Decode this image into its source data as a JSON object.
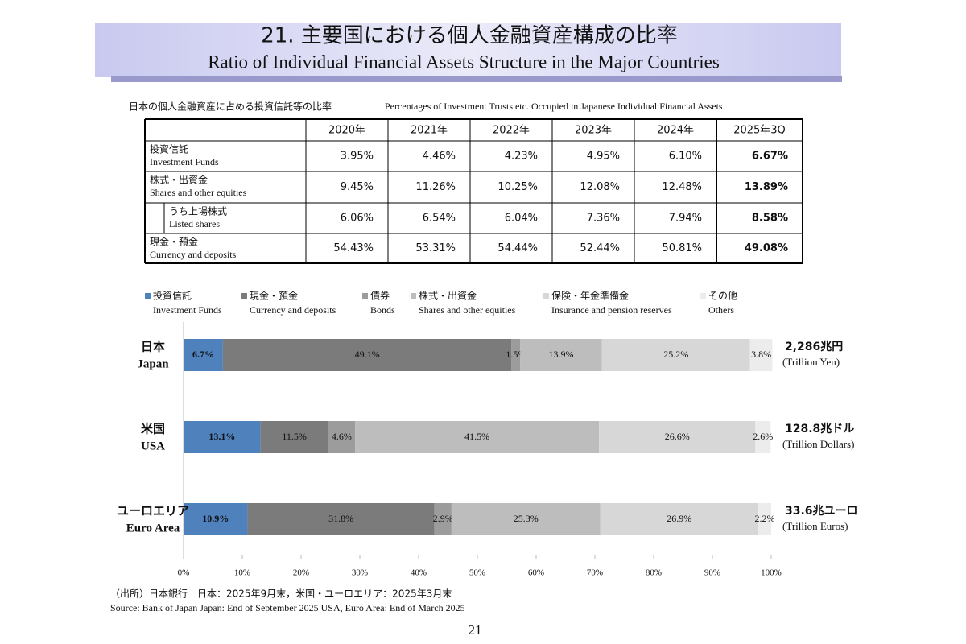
{
  "header": {
    "title": "21. 主要国における個人金融資産構成の比率",
    "subtitle": "Ratio of Individual Financial Assets Structure in the Major Countries"
  },
  "table": {
    "title": "日本の個人金融資産に占める投資信託等の比率",
    "title_en": "Percentages of Investment Trusts etc. Occupied in Japanese Individual Financial Assets",
    "columns": [
      "2020年",
      "2021年",
      "2022年",
      "2023年",
      "2024年",
      "2025年3Q"
    ],
    "rows": [
      {
        "label": "投資信託",
        "label_en": "Investment Funds",
        "values": [
          "3.95%",
          "4.46%",
          "4.23%",
          "4.95%",
          "6.10%",
          "6.67%"
        ]
      },
      {
        "label": "株式・出資金",
        "label_en": "Shares and other equities",
        "values": [
          "9.45%",
          "11.26%",
          "10.25%",
          "12.08%",
          "12.48%",
          "13.89%"
        ]
      },
      {
        "label": "うち上場株式",
        "label_en": "Listed shares",
        "values": [
          "6.06%",
          "6.54%",
          "6.04%",
          "7.36%",
          "7.94%",
          "8.58%"
        ]
      },
      {
        "label": "現金・預金",
        "label_en": "Currency and deposits",
        "values": [
          "54.43%",
          "53.31%",
          "54.44%",
          "52.44%",
          "50.81%",
          "49.08%"
        ]
      }
    ]
  },
  "chart_data": {
    "type": "stacked-bar-horizontal",
    "categories": [
      "日本",
      "米国",
      "ユーロエリア"
    ],
    "categories_en": [
      "Japan",
      "USA",
      "Euro Area"
    ],
    "totals": [
      "2,286兆円",
      "128.8兆ドル",
      "33.6兆ユーロ"
    ],
    "total_units": [
      "(Trillion Yen)",
      "(Trillion Dollars)",
      "(Trillion Euros)"
    ],
    "series": [
      {
        "name": "投資信託",
        "name_en": "Investment Funds",
        "color": "#4f81bd",
        "values": [
          6.7,
          13.1,
          10.9
        ],
        "value_labels": [
          "6.7%",
          "13.1%",
          "10.9%"
        ]
      },
      {
        "name": "現金・預金",
        "name_en": "Currency and deposits",
        "color": "#7b7b7b",
        "values": [
          49.1,
          11.5,
          31.8
        ],
        "value_labels": [
          "49.1%",
          "11.5%",
          "31.8%"
        ]
      },
      {
        "name": "債券",
        "name_en": "Bonds",
        "color": "#9c9c9c",
        "values": [
          1.5,
          4.6,
          2.9
        ],
        "value_labels": [
          "1.5%",
          "4.6%",
          "2.9%"
        ]
      },
      {
        "name": "株式・出資金",
        "name_en": "Shares and other equities",
        "color": "#bdbdbd",
        "values": [
          13.9,
          41.5,
          25.3
        ],
        "value_labels": [
          "13.9%",
          "41.5%",
          "25.3%"
        ]
      },
      {
        "name": "保険・年金準備金",
        "name_en": "Insurance and pension reserves",
        "color": "#d7d7d7",
        "values": [
          25.2,
          26.6,
          26.9
        ],
        "value_labels": [
          "25.2%",
          "26.6%",
          "26.9%"
        ]
      },
      {
        "name": "その他",
        "name_en": "Others",
        "color": "#ececec",
        "values": [
          3.8,
          2.6,
          2.2
        ],
        "value_labels": [
          "3.8%",
          "2.6%",
          "2.2%"
        ]
      }
    ],
    "xlim": [
      0,
      100
    ],
    "xticks": [
      {
        "value": 0,
        "label": "0%"
      },
      {
        "value": 10,
        "label": "10%"
      },
      {
        "value": 20,
        "label": "20%"
      },
      {
        "value": 30,
        "label": "30%"
      },
      {
        "value": 40,
        "label": "40%"
      },
      {
        "value": 50,
        "label": "50%"
      },
      {
        "value": 60,
        "label": "60%"
      },
      {
        "value": 70,
        "label": "70%"
      },
      {
        "value": 80,
        "label": "80%"
      },
      {
        "value": 90,
        "label": "90%"
      },
      {
        "value": 100,
        "label": "100%"
      }
    ]
  },
  "source": {
    "ja": "（出所）日本銀行　日本：2025年9月末，米国・ユーロエリア：2025年3月末",
    "en": "Source: Bank of Japan  Japan: End of September 2025 USA, Euro Area: End of March 2025"
  },
  "page_number": "21"
}
